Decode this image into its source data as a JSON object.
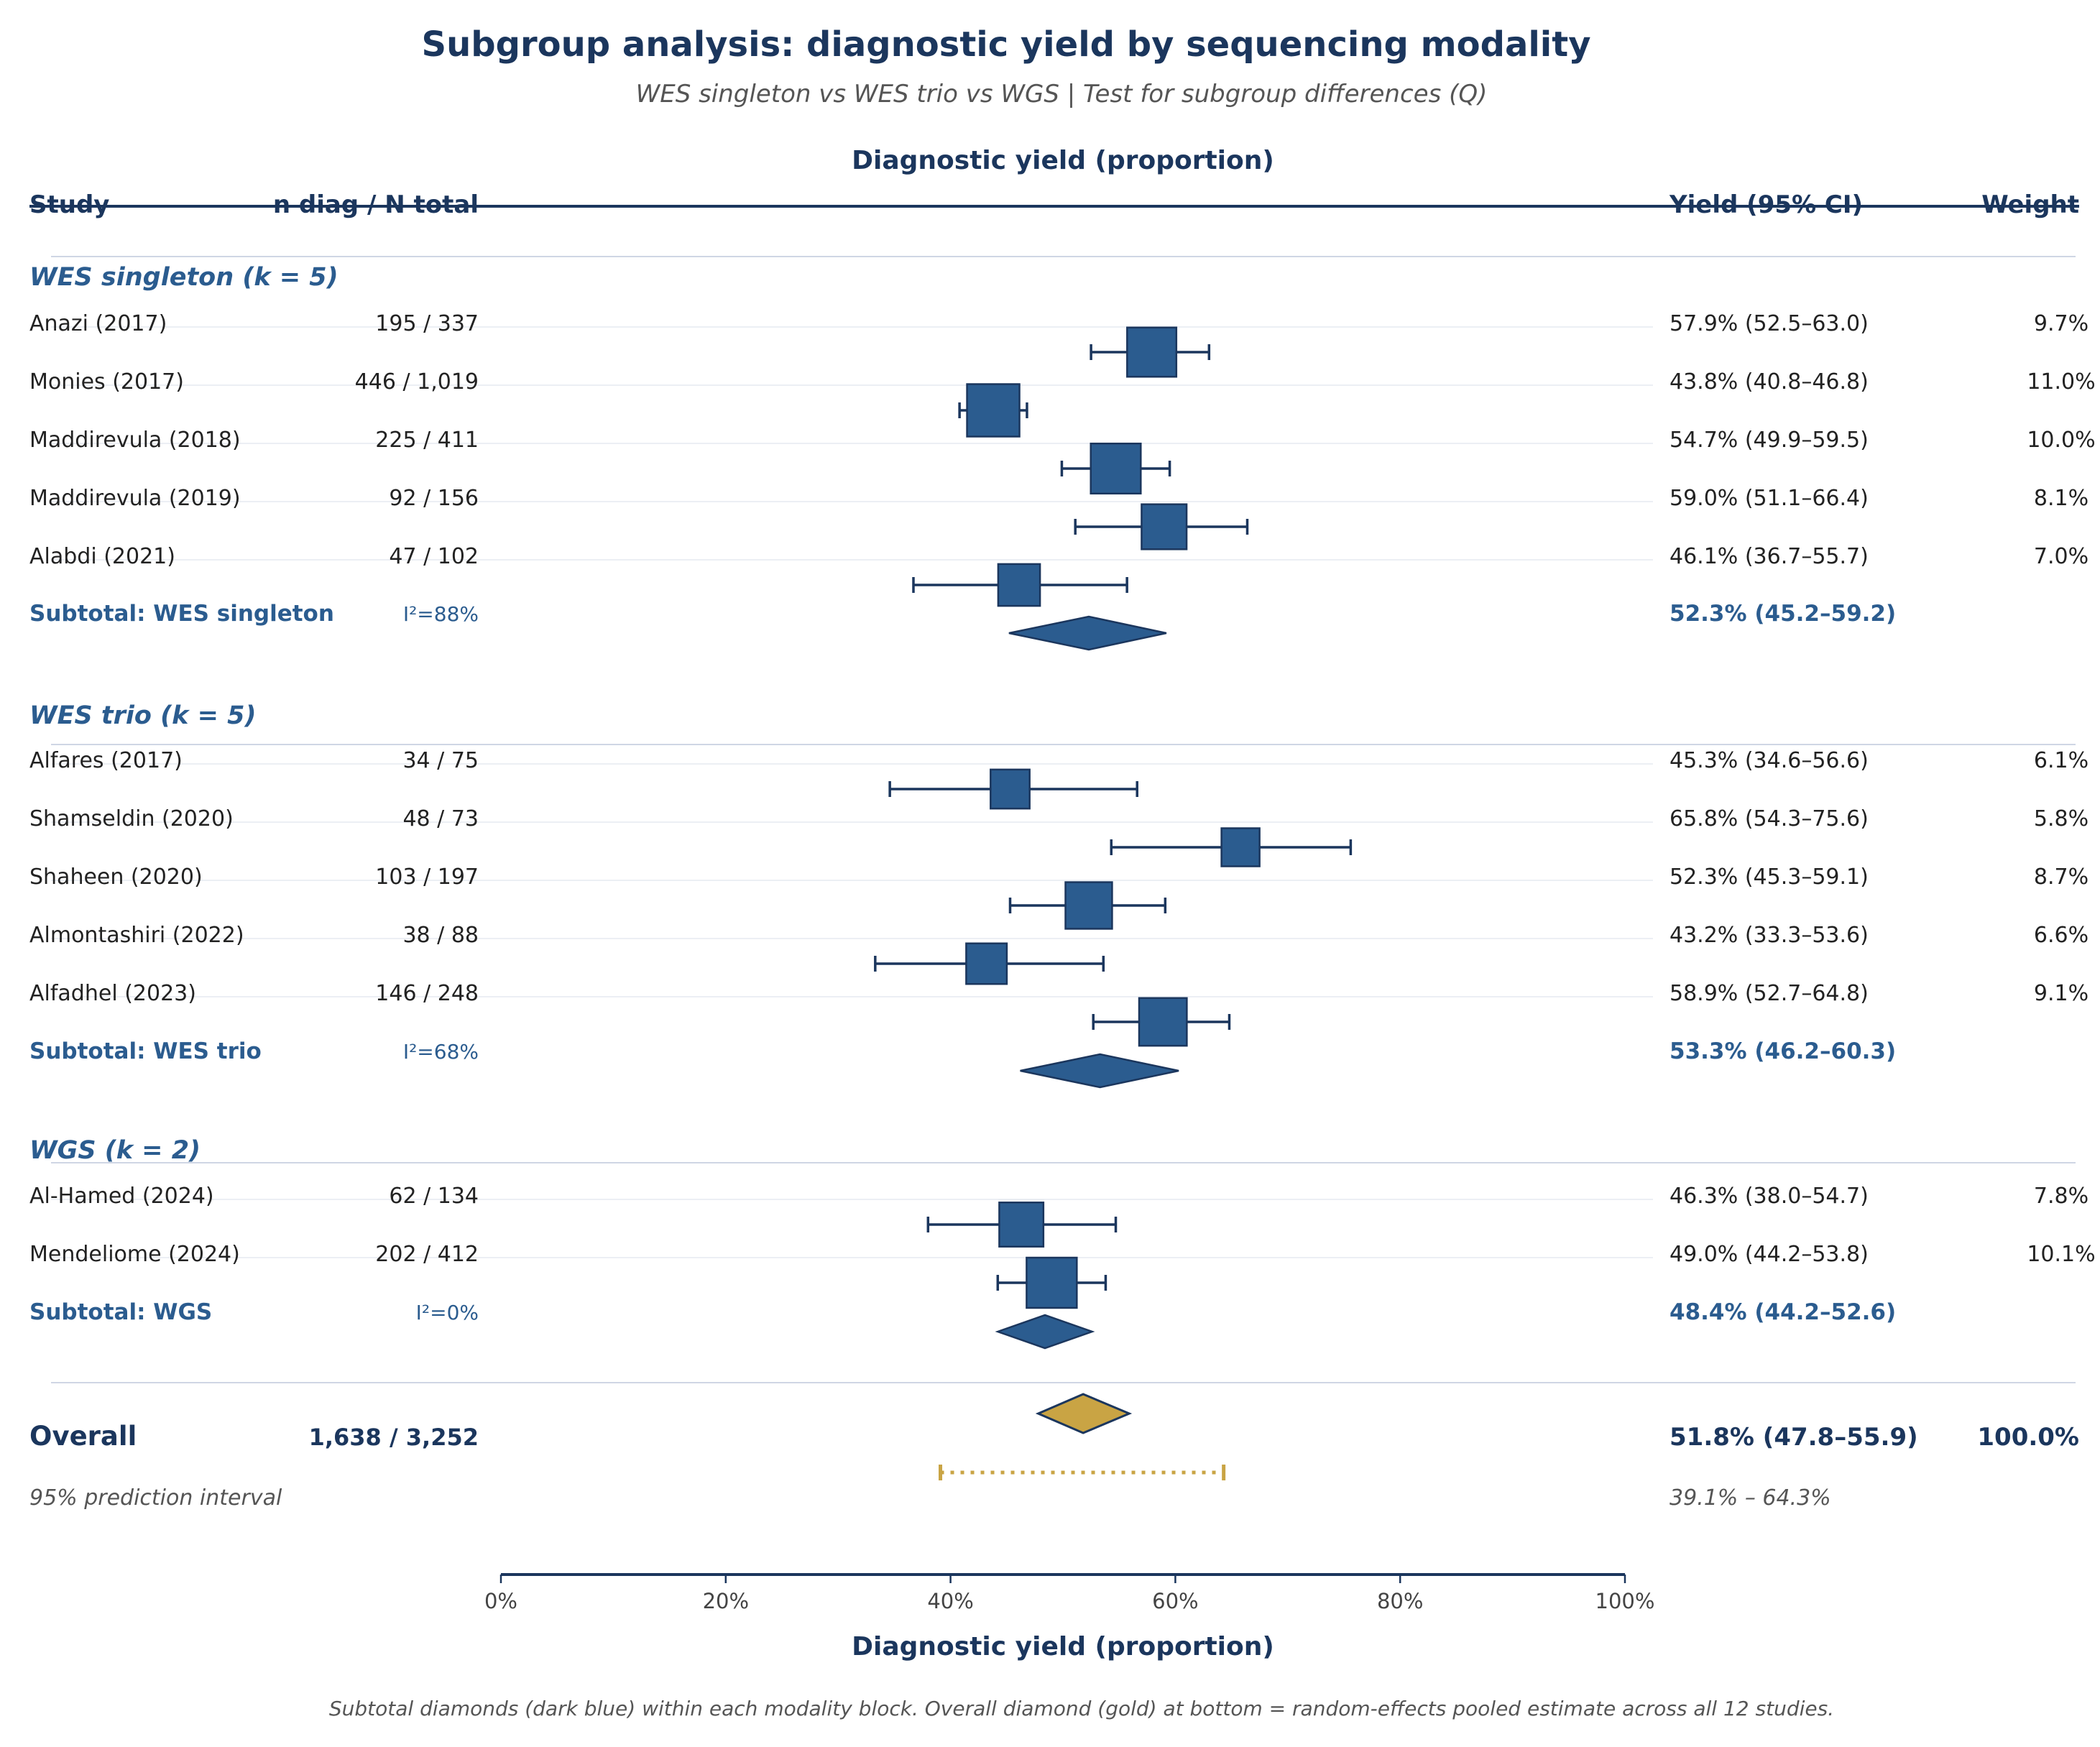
{
  "chart_data": {
    "type": "forest",
    "title": "Subgroup analysis: diagnostic yield by sequencing modality",
    "subtitle": "WES singleton vs WES trio vs WGS  |  Test for subgroup differences (Q)",
    "axis_top_label": "Diagnostic yield (proportion)",
    "xlabel": "Diagnostic yield (proportion)",
    "xlim": [
      0,
      100
    ],
    "x_ticks": [
      0,
      20,
      40,
      60,
      80,
      100
    ],
    "x_tick_labels": [
      "0%",
      "20%",
      "40%",
      "60%",
      "80%",
      "100%"
    ],
    "headers": {
      "study": "Study",
      "counts": "n diag / N total",
      "yield": "Yield (95% CI)",
      "weight": "Weight"
    },
    "colors": {
      "study": "#2b5c8f",
      "subtotal": "#2b5c8f",
      "overall": "#c9a444",
      "line": "#1b365d",
      "pi": "#c9a444"
    },
    "groups": [
      {
        "label": "WES singleton (k = 5)",
        "studies": [
          {
            "name": "Anazi (2017)",
            "counts": "195 / 337",
            "est": 57.9,
            "lo": 52.5,
            "hi": 63.0,
            "weight": 9.7,
            "yield_text": "57.9% (52.5–63.0)",
            "weight_text": "9.7%"
          },
          {
            "name": "Monies (2017)",
            "counts": "446 / 1,019",
            "est": 43.8,
            "lo": 40.8,
            "hi": 46.8,
            "weight": 11.0,
            "yield_text": "43.8% (40.8–46.8)",
            "weight_text": "11.0%"
          },
          {
            "name": "Maddirevula (2018)",
            "counts": "225 / 411",
            "est": 54.7,
            "lo": 49.9,
            "hi": 59.5,
            "weight": 10.0,
            "yield_text": "54.7% (49.9–59.5)",
            "weight_text": "10.0%"
          },
          {
            "name": "Maddirevula (2019)",
            "counts": "92 / 156",
            "est": 59.0,
            "lo": 51.1,
            "hi": 66.4,
            "weight": 8.1,
            "yield_text": "59.0% (51.1–66.4)",
            "weight_text": "8.1%"
          },
          {
            "name": "Alabdi (2021)",
            "counts": "47 / 102",
            "est": 46.1,
            "lo": 36.7,
            "hi": 55.7,
            "weight": 7.0,
            "yield_text": "46.1% (36.7–55.7)",
            "weight_text": "7.0%"
          }
        ],
        "subtotal": {
          "label": "Subtotal: WES singleton",
          "i2": "I²=88%",
          "est": 52.3,
          "lo": 45.2,
          "hi": 59.2,
          "yield_text": "52.3% (45.2–59.2)"
        }
      },
      {
        "label": "WES trio (k = 5)",
        "studies": [
          {
            "name": "Alfares (2017)",
            "counts": "34 / 75",
            "est": 45.3,
            "lo": 34.6,
            "hi": 56.6,
            "weight": 6.1,
            "yield_text": "45.3% (34.6–56.6)",
            "weight_text": "6.1%"
          },
          {
            "name": "Shamseldin (2020)",
            "counts": "48 / 73",
            "est": 65.8,
            "lo": 54.3,
            "hi": 75.6,
            "weight": 5.8,
            "yield_text": "65.8% (54.3–75.6)",
            "weight_text": "5.8%"
          },
          {
            "name": "Shaheen (2020)",
            "counts": "103 / 197",
            "est": 52.3,
            "lo": 45.3,
            "hi": 59.1,
            "weight": 8.7,
            "yield_text": "52.3% (45.3–59.1)",
            "weight_text": "8.7%"
          },
          {
            "name": "Almontashiri (2022)",
            "counts": "38 / 88",
            "est": 43.2,
            "lo": 33.3,
            "hi": 53.6,
            "weight": 6.6,
            "yield_text": "43.2% (33.3–53.6)",
            "weight_text": "6.6%"
          },
          {
            "name": "Alfadhel (2023)",
            "counts": "146 / 248",
            "est": 58.9,
            "lo": 52.7,
            "hi": 64.8,
            "weight": 9.1,
            "yield_text": "58.9% (52.7–64.8)",
            "weight_text": "9.1%"
          }
        ],
        "subtotal": {
          "label": "Subtotal: WES trio",
          "i2": "I²=68%",
          "est": 53.3,
          "lo": 46.2,
          "hi": 60.3,
          "yield_text": "53.3% (46.2–60.3)"
        }
      },
      {
        "label": "WGS (k = 2)",
        "studies": [
          {
            "name": "Al-Hamed (2024)",
            "counts": "62 / 134",
            "est": 46.3,
            "lo": 38.0,
            "hi": 54.7,
            "weight": 7.8,
            "yield_text": "46.3% (38.0–54.7)",
            "weight_text": "7.8%"
          },
          {
            "name": "Mendeliome (2024)",
            "counts": "202 / 412",
            "est": 49.0,
            "lo": 44.2,
            "hi": 53.8,
            "weight": 10.1,
            "yield_text": "49.0% (44.2–53.8)",
            "weight_text": "10.1%"
          }
        ],
        "subtotal": {
          "label": "Subtotal: WGS",
          "i2": "I²=0%",
          "est": 48.4,
          "lo": 44.2,
          "hi": 52.6,
          "yield_text": "48.4% (44.2–52.6)"
        }
      }
    ],
    "overall": {
      "label": "Overall",
      "counts": "1,638 / 3,252",
      "est": 51.8,
      "lo": 47.8,
      "hi": 55.9,
      "yield_text": "51.8% (47.8–55.9)",
      "weight_text": "100.0%"
    },
    "prediction_interval": {
      "label": "95% prediction interval",
      "lo": 39.1,
      "hi": 64.3,
      "text": "39.1% – 64.3%"
    },
    "footnote": "Subtotal diamonds (dark blue) within each modality block.  Overall diamond (gold) at bottom = random-effects pooled estimate across all 12 studies."
  }
}
